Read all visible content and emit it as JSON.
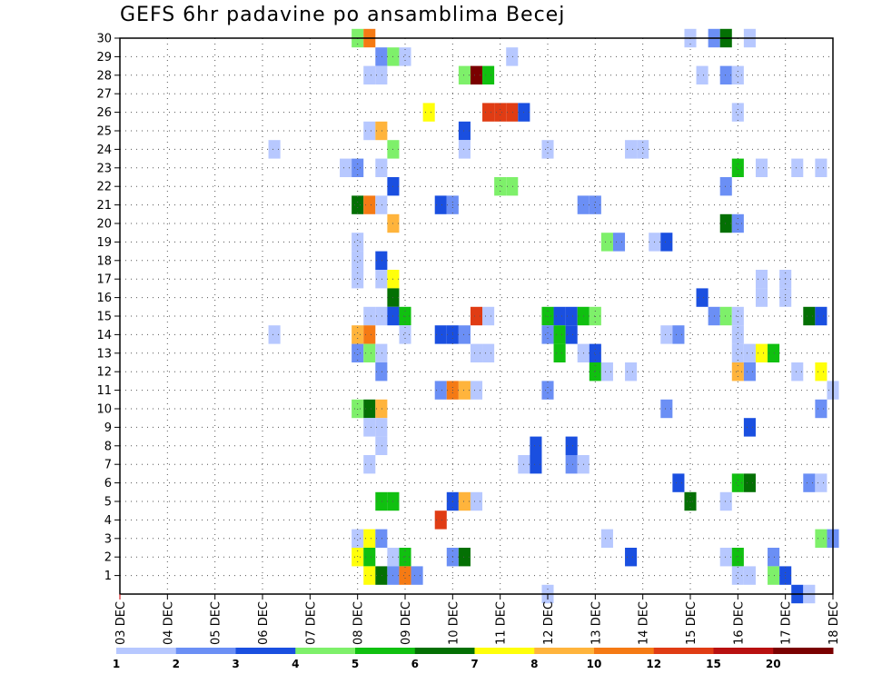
{
  "chart_data": {
    "type": "heatmap",
    "title": "GEFS 6hr padavine po ansamblima Becej",
    "xlabel": "",
    "ylabel": "",
    "x_tick_labels": [
      "03 DEC",
      "04 DEC",
      "05 DEC",
      "06 DEC",
      "07 DEC",
      "08 DEC",
      "09 DEC",
      "10 DEC",
      "11 DEC",
      "12 DEC",
      "13 DEC",
      "14 DEC",
      "15 DEC",
      "16 DEC",
      "17 DEC",
      "18 DEC"
    ],
    "y_tick_labels": [
      "1",
      "2",
      "3",
      "4",
      "5",
      "6",
      "7",
      "8",
      "9",
      "10",
      "11",
      "12",
      "13",
      "14",
      "15",
      "16",
      "17",
      "18",
      "19",
      "20",
      "21",
      "22",
      "23",
      "24",
      "25",
      "26",
      "27",
      "28",
      "29",
      "30"
    ],
    "grid": true,
    "colorbar": {
      "labels": [
        "1",
        "2",
        "3",
        "4",
        "5",
        "6",
        "7",
        "8",
        "10",
        "12",
        "15",
        "20"
      ],
      "colors": [
        "#b7c8ff",
        "#6b8ff5",
        "#1a4fe0",
        "#7ef06a",
        "#10c010",
        "#047004",
        "#ffff0a",
        "#ffb43c",
        "#f57a14",
        "#e03c14",
        "#b81010",
        "#7a0000"
      ]
    },
    "cells": [
      {
        "m": 30,
        "d": 8.0,
        "c": 4
      },
      {
        "m": 30,
        "d": 8.25,
        "c": 9
      },
      {
        "m": 30,
        "d": 15.0,
        "c": 1
      },
      {
        "m": 30,
        "d": 15.5,
        "c": 2
      },
      {
        "m": 30,
        "d": 15.75,
        "c": 6
      },
      {
        "m": 30,
        "d": 16.25,
        "c": 1
      },
      {
        "m": 29,
        "d": 8.5,
        "c": 2
      },
      {
        "m": 29,
        "d": 8.75,
        "c": 4
      },
      {
        "m": 29,
        "d": 9.0,
        "c": 1
      },
      {
        "m": 29,
        "d": 11.25,
        "c": 1
      },
      {
        "m": 28,
        "d": 8.25,
        "c": 1
      },
      {
        "m": 28,
        "d": 8.5,
        "c": 1
      },
      {
        "m": 28,
        "d": 10.25,
        "c": 4
      },
      {
        "m": 28,
        "d": 10.5,
        "c": 12
      },
      {
        "m": 28,
        "d": 10.75,
        "c": 5
      },
      {
        "m": 28,
        "d": 15.25,
        "c": 1
      },
      {
        "m": 28,
        "d": 15.75,
        "c": 2
      },
      {
        "m": 28,
        "d": 16.0,
        "c": 1
      },
      {
        "m": 26,
        "d": 9.5,
        "c": 7
      },
      {
        "m": 26,
        "d": 10.75,
        "c": 10
      },
      {
        "m": 26,
        "d": 11.0,
        "c": 10
      },
      {
        "m": 26,
        "d": 11.25,
        "c": 10
      },
      {
        "m": 26,
        "d": 11.5,
        "c": 3
      },
      {
        "m": 26,
        "d": 16.0,
        "c": 1
      },
      {
        "m": 25,
        "d": 8.25,
        "c": 1
      },
      {
        "m": 25,
        "d": 8.5,
        "c": 8
      },
      {
        "m": 25,
        "d": 10.25,
        "c": 3
      },
      {
        "m": 24,
        "d": 6.25,
        "c": 1
      },
      {
        "m": 24,
        "d": 8.75,
        "c": 4
      },
      {
        "m": 24,
        "d": 10.25,
        "c": 1
      },
      {
        "m": 24,
        "d": 12.0,
        "c": 1
      },
      {
        "m": 24,
        "d": 13.75,
        "c": 1
      },
      {
        "m": 24,
        "d": 14.0,
        "c": 1
      },
      {
        "m": 23,
        "d": 7.75,
        "c": 1
      },
      {
        "m": 23,
        "d": 8.0,
        "c": 2
      },
      {
        "m": 23,
        "d": 8.5,
        "c": 1
      },
      {
        "m": 23,
        "d": 16.0,
        "c": 5
      },
      {
        "m": 23,
        "d": 16.5,
        "c": 1
      },
      {
        "m": 23,
        "d": 17.25,
        "c": 1
      },
      {
        "m": 23,
        "d": 17.75,
        "c": 1
      },
      {
        "m": 22,
        "d": 8.75,
        "c": 3
      },
      {
        "m": 22,
        "d": 11.0,
        "c": 4
      },
      {
        "m": 22,
        "d": 11.25,
        "c": 4
      },
      {
        "m": 22,
        "d": 15.75,
        "c": 2
      },
      {
        "m": 21,
        "d": 8.0,
        "c": 6
      },
      {
        "m": 21,
        "d": 8.25,
        "c": 9
      },
      {
        "m": 21,
        "d": 8.5,
        "c": 1
      },
      {
        "m": 21,
        "d": 9.75,
        "c": 3
      },
      {
        "m": 21,
        "d": 10.0,
        "c": 2
      },
      {
        "m": 21,
        "d": 12.75,
        "c": 2
      },
      {
        "m": 21,
        "d": 13.0,
        "c": 2
      },
      {
        "m": 20,
        "d": 8.75,
        "c": 8
      },
      {
        "m": 20,
        "d": 15.75,
        "c": 6
      },
      {
        "m": 20,
        "d": 16.0,
        "c": 2
      },
      {
        "m": 19,
        "d": 8.0,
        "c": 1
      },
      {
        "m": 19,
        "d": 13.25,
        "c": 4
      },
      {
        "m": 19,
        "d": 13.5,
        "c": 2
      },
      {
        "m": 19,
        "d": 14.25,
        "c": 1
      },
      {
        "m": 19,
        "d": 14.5,
        "c": 3
      },
      {
        "m": 18,
        "d": 8.0,
        "c": 1
      },
      {
        "m": 18,
        "d": 8.5,
        "c": 3
      },
      {
        "m": 17,
        "d": 8.0,
        "c": 1
      },
      {
        "m": 17,
        "d": 8.5,
        "c": 1
      },
      {
        "m": 17,
        "d": 8.75,
        "c": 7
      },
      {
        "m": 17,
        "d": 16.5,
        "c": 1
      },
      {
        "m": 17,
        "d": 17.0,
        "c": 1
      },
      {
        "m": 16,
        "d": 8.75,
        "c": 6
      },
      {
        "m": 16,
        "d": 15.25,
        "c": 3
      },
      {
        "m": 16,
        "d": 16.5,
        "c": 1
      },
      {
        "m": 16,
        "d": 17.0,
        "c": 1
      },
      {
        "m": 15,
        "d": 8.25,
        "c": 1
      },
      {
        "m": 15,
        "d": 8.5,
        "c": 1
      },
      {
        "m": 15,
        "d": 8.75,
        "c": 3
      },
      {
        "m": 15,
        "d": 9.0,
        "c": 5
      },
      {
        "m": 15,
        "d": 10.5,
        "c": 10
      },
      {
        "m": 15,
        "d": 10.75,
        "c": 1
      },
      {
        "m": 15,
        "d": 12.0,
        "c": 5
      },
      {
        "m": 15,
        "d": 12.25,
        "c": 3
      },
      {
        "m": 15,
        "d": 12.5,
        "c": 3
      },
      {
        "m": 15,
        "d": 12.75,
        "c": 5
      },
      {
        "m": 15,
        "d": 13.0,
        "c": 4
      },
      {
        "m": 15,
        "d": 15.5,
        "c": 2
      },
      {
        "m": 15,
        "d": 15.75,
        "c": 4
      },
      {
        "m": 15,
        "d": 16.0,
        "c": 1
      },
      {
        "m": 15,
        "d": 17.5,
        "c": 6
      },
      {
        "m": 15,
        "d": 17.75,
        "c": 3
      },
      {
        "m": 14,
        "d": 6.25,
        "c": 1
      },
      {
        "m": 14,
        "d": 8.0,
        "c": 8
      },
      {
        "m": 14,
        "d": 8.25,
        "c": 9
      },
      {
        "m": 14,
        "d": 9.0,
        "c": 1
      },
      {
        "m": 14,
        "d": 9.75,
        "c": 3
      },
      {
        "m": 14,
        "d": 10.0,
        "c": 3
      },
      {
        "m": 14,
        "d": 10.25,
        "c": 2
      },
      {
        "m": 14,
        "d": 12.0,
        "c": 2
      },
      {
        "m": 14,
        "d": 12.25,
        "c": 5
      },
      {
        "m": 14,
        "d": 12.5,
        "c": 3
      },
      {
        "m": 14,
        "d": 14.5,
        "c": 1
      },
      {
        "m": 14,
        "d": 14.75,
        "c": 2
      },
      {
        "m": 14,
        "d": 16.0,
        "c": 1
      },
      {
        "m": 13,
        "d": 8.0,
        "c": 2
      },
      {
        "m": 13,
        "d": 8.25,
        "c": 4
      },
      {
        "m": 13,
        "d": 8.5,
        "c": 1
      },
      {
        "m": 13,
        "d": 10.5,
        "c": 1
      },
      {
        "m": 13,
        "d": 10.75,
        "c": 1
      },
      {
        "m": 13,
        "d": 12.25,
        "c": 5
      },
      {
        "m": 13,
        "d": 12.75,
        "c": 1
      },
      {
        "m": 13,
        "d": 13.0,
        "c": 3
      },
      {
        "m": 13,
        "d": 16.0,
        "c": 1
      },
      {
        "m": 13,
        "d": 16.25,
        "c": 1
      },
      {
        "m": 13,
        "d": 16.5,
        "c": 7
      },
      {
        "m": 13,
        "d": 16.75,
        "c": 5
      },
      {
        "m": 12,
        "d": 8.5,
        "c": 2
      },
      {
        "m": 12,
        "d": 13.0,
        "c": 5
      },
      {
        "m": 12,
        "d": 13.25,
        "c": 1
      },
      {
        "m": 12,
        "d": 13.75,
        "c": 1
      },
      {
        "m": 12,
        "d": 16.0,
        "c": 8
      },
      {
        "m": 12,
        "d": 16.25,
        "c": 2
      },
      {
        "m": 12,
        "d": 17.25,
        "c": 1
      },
      {
        "m": 12,
        "d": 17.75,
        "c": 7
      },
      {
        "m": 11,
        "d": 9.75,
        "c": 2
      },
      {
        "m": 11,
        "d": 10.0,
        "c": 9
      },
      {
        "m": 11,
        "d": 10.25,
        "c": 8
      },
      {
        "m": 11,
        "d": 10.5,
        "c": 1
      },
      {
        "m": 11,
        "d": 12.0,
        "c": 2
      },
      {
        "m": 11,
        "d": 18.0,
        "c": 1
      },
      {
        "m": 10,
        "d": 8.0,
        "c": 4
      },
      {
        "m": 10,
        "d": 8.25,
        "c": 6
      },
      {
        "m": 10,
        "d": 8.5,
        "c": 8
      },
      {
        "m": 10,
        "d": 14.5,
        "c": 2
      },
      {
        "m": 10,
        "d": 17.75,
        "c": 2
      },
      {
        "m": 9,
        "d": 8.25,
        "c": 1
      },
      {
        "m": 9,
        "d": 8.5,
        "c": 1
      },
      {
        "m": 9,
        "d": 16.25,
        "c": 3
      },
      {
        "m": 8,
        "d": 8.5,
        "c": 1
      },
      {
        "m": 8,
        "d": 11.75,
        "c": 3
      },
      {
        "m": 8,
        "d": 12.5,
        "c": 3
      },
      {
        "m": 7,
        "d": 8.25,
        "c": 1
      },
      {
        "m": 7,
        "d": 11.5,
        "c": 1
      },
      {
        "m": 7,
        "d": 11.75,
        "c": 3
      },
      {
        "m": 7,
        "d": 12.5,
        "c": 2
      },
      {
        "m": 7,
        "d": 12.75,
        "c": 1
      },
      {
        "m": 6,
        "d": 14.75,
        "c": 3
      },
      {
        "m": 6,
        "d": 16.0,
        "c": 5
      },
      {
        "m": 6,
        "d": 16.25,
        "c": 6
      },
      {
        "m": 6,
        "d": 17.5,
        "c": 2
      },
      {
        "m": 6,
        "d": 17.75,
        "c": 1
      },
      {
        "m": 5,
        "d": 8.5,
        "c": 5
      },
      {
        "m": 5,
        "d": 8.75,
        "c": 5
      },
      {
        "m": 5,
        "d": 10.0,
        "c": 3
      },
      {
        "m": 5,
        "d": 10.25,
        "c": 8
      },
      {
        "m": 5,
        "d": 10.5,
        "c": 1
      },
      {
        "m": 5,
        "d": 15.0,
        "c": 6
      },
      {
        "m": 5,
        "d": 15.75,
        "c": 1
      },
      {
        "m": 4,
        "d": 9.75,
        "c": 10
      },
      {
        "m": 3,
        "d": 8.0,
        "c": 1
      },
      {
        "m": 3,
        "d": 8.25,
        "c": 7
      },
      {
        "m": 3,
        "d": 8.5,
        "c": 2
      },
      {
        "m": 3,
        "d": 13.25,
        "c": 1
      },
      {
        "m": 3,
        "d": 17.75,
        "c": 4
      },
      {
        "m": 3,
        "d": 18.0,
        "c": 2
      },
      {
        "m": 2,
        "d": 8.0,
        "c": 7
      },
      {
        "m": 2,
        "d": 8.25,
        "c": 5
      },
      {
        "m": 2,
        "d": 8.75,
        "c": 1
      },
      {
        "m": 2,
        "d": 9.0,
        "c": 5
      },
      {
        "m": 2,
        "d": 10.0,
        "c": 2
      },
      {
        "m": 2,
        "d": 10.25,
        "c": 6
      },
      {
        "m": 2,
        "d": 13.75,
        "c": 3
      },
      {
        "m": 2,
        "d": 15.75,
        "c": 1
      },
      {
        "m": 2,
        "d": 16.0,
        "c": 5
      },
      {
        "m": 2,
        "d": 16.75,
        "c": 2
      },
      {
        "m": 1,
        "d": 8.25,
        "c": 7
      },
      {
        "m": 1,
        "d": 8.5,
        "c": 6
      },
      {
        "m": 1,
        "d": 8.75,
        "c": 2
      },
      {
        "m": 1,
        "d": 9.0,
        "c": 9
      },
      {
        "m": 1,
        "d": 9.25,
        "c": 2
      },
      {
        "m": 1,
        "d": 16.0,
        "c": 1
      },
      {
        "m": 1,
        "d": 16.25,
        "c": 1
      },
      {
        "m": 1,
        "d": 16.75,
        "c": 4
      },
      {
        "m": 1,
        "d": 17.0,
        "c": 3
      },
      {
        "m": 0,
        "d": 12.0,
        "c": 1
      },
      {
        "m": 0,
        "d": 17.25,
        "c": 3
      },
      {
        "m": 0,
        "d": 17.5,
        "c": 1
      }
    ]
  }
}
